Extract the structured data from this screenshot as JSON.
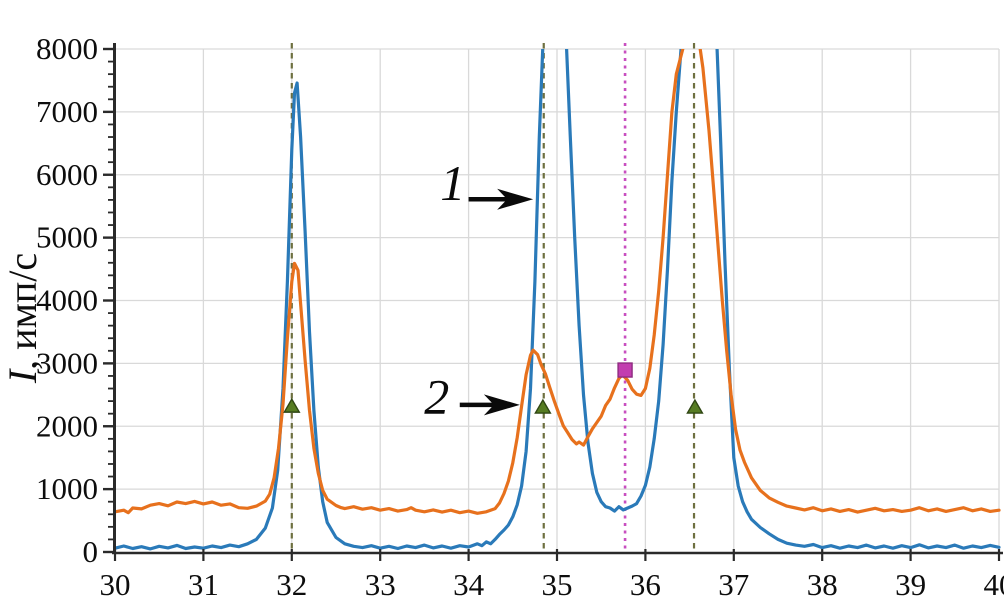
{
  "figure": {
    "background": "#ffffff"
  },
  "chart_data": {
    "type": "line",
    "title": "",
    "xlabel": "",
    "ylabel": "I, имп/с",
    "ylabel_italic_part": "I",
    "ylabel_rest": ", имп/с",
    "xlim": [
      30,
      40
    ],
    "ylim": [
      0,
      8000
    ],
    "x_ticks": [
      30,
      31,
      32,
      33,
      34,
      35,
      36,
      37,
      38,
      39,
      40
    ],
    "y_ticks": [
      0,
      1000,
      2000,
      3000,
      4000,
      5000,
      6000,
      7000,
      8000
    ],
    "y_minor_step": 200,
    "grid": true,
    "grid_color": "#d9d9d9",
    "axis_color": "#2a2a2a",
    "tick_label_color": "#0d0d0d",
    "legend_position": "none",
    "series": [
      {
        "name": "1",
        "color": "#2a7ab9",
        "points": [
          [
            30,
            60
          ],
          [
            30.1,
            95
          ],
          [
            30.2,
            55
          ],
          [
            30.3,
            85
          ],
          [
            30.4,
            50
          ],
          [
            30.5,
            90
          ],
          [
            30.6,
            65
          ],
          [
            30.7,
            105
          ],
          [
            30.8,
            55
          ],
          [
            30.9,
            80
          ],
          [
            31,
            60
          ],
          [
            31.1,
            95
          ],
          [
            31.2,
            70
          ],
          [
            31.3,
            110
          ],
          [
            31.4,
            85
          ],
          [
            31.5,
            130
          ],
          [
            31.6,
            200
          ],
          [
            31.7,
            380
          ],
          [
            31.78,
            700
          ],
          [
            31.84,
            1300
          ],
          [
            31.9,
            2600
          ],
          [
            31.95,
            4300
          ],
          [
            32,
            6400
          ],
          [
            32.03,
            7300
          ],
          [
            32.06,
            7460
          ],
          [
            32.1,
            6600
          ],
          [
            32.15,
            5100
          ],
          [
            32.2,
            3500
          ],
          [
            32.25,
            2250
          ],
          [
            32.3,
            1350
          ],
          [
            32.35,
            800
          ],
          [
            32.4,
            470
          ],
          [
            32.5,
            230
          ],
          [
            32.6,
            130
          ],
          [
            32.7,
            90
          ],
          [
            32.8,
            70
          ],
          [
            32.9,
            100
          ],
          [
            33,
            60
          ],
          [
            33.1,
            90
          ],
          [
            33.2,
            55
          ],
          [
            33.3,
            95
          ],
          [
            33.4,
            70
          ],
          [
            33.5,
            110
          ],
          [
            33.6,
            65
          ],
          [
            33.7,
            95
          ],
          [
            33.8,
            60
          ],
          [
            33.9,
            100
          ],
          [
            34,
            80
          ],
          [
            34.1,
            130
          ],
          [
            34.15,
            100
          ],
          [
            34.2,
            160
          ],
          [
            34.25,
            130
          ],
          [
            34.3,
            200
          ],
          [
            34.35,
            280
          ],
          [
            34.4,
            350
          ],
          [
            34.45,
            430
          ],
          [
            34.5,
            560
          ],
          [
            34.55,
            750
          ],
          [
            34.6,
            1050
          ],
          [
            34.65,
            1600
          ],
          [
            34.7,
            2600
          ],
          [
            34.75,
            4300
          ],
          [
            34.8,
            6600
          ],
          [
            34.85,
            8400
          ],
          [
            34.95,
            9600
          ],
          [
            35.05,
            9200
          ],
          [
            35.1,
            8300
          ],
          [
            35.15,
            6600
          ],
          [
            35.2,
            5000
          ],
          [
            35.25,
            3600
          ],
          [
            35.3,
            2500
          ],
          [
            35.35,
            1750
          ],
          [
            35.4,
            1250
          ],
          [
            35.45,
            950
          ],
          [
            35.5,
            800
          ],
          [
            35.55,
            720
          ],
          [
            35.6,
            700
          ],
          [
            35.65,
            650
          ],
          [
            35.7,
            720
          ],
          [
            35.75,
            670
          ],
          [
            35.8,
            700
          ],
          [
            35.85,
            730
          ],
          [
            35.9,
            770
          ],
          [
            35.95,
            890
          ],
          [
            36,
            1060
          ],
          [
            36.05,
            1350
          ],
          [
            36.1,
            1800
          ],
          [
            36.15,
            2400
          ],
          [
            36.2,
            3300
          ],
          [
            36.25,
            4500
          ],
          [
            36.3,
            5900
          ],
          [
            36.35,
            7000
          ],
          [
            36.43,
            8500
          ],
          [
            36.55,
            9800
          ],
          [
            36.7,
            9700
          ],
          [
            36.8,
            8400
          ],
          [
            36.85,
            6600
          ],
          [
            36.9,
            4600
          ],
          [
            36.95,
            2900
          ],
          [
            37,
            1500
          ],
          [
            37.05,
            1050
          ],
          [
            37.1,
            800
          ],
          [
            37.15,
            640
          ],
          [
            37.2,
            520
          ],
          [
            37.3,
            390
          ],
          [
            37.4,
            290
          ],
          [
            37.5,
            200
          ],
          [
            37.6,
            140
          ],
          [
            37.7,
            110
          ],
          [
            37.8,
            90
          ],
          [
            37.9,
            120
          ],
          [
            38,
            70
          ],
          [
            38.1,
            100
          ],
          [
            38.2,
            60
          ],
          [
            38.3,
            95
          ],
          [
            38.4,
            70
          ],
          [
            38.5,
            110
          ],
          [
            38.6,
            65
          ],
          [
            38.7,
            95
          ],
          [
            38.8,
            60
          ],
          [
            38.9,
            100
          ],
          [
            39,
            70
          ],
          [
            39.1,
            115
          ],
          [
            39.2,
            65
          ],
          [
            39.3,
            95
          ],
          [
            39.4,
            70
          ],
          [
            39.5,
            110
          ],
          [
            39.6,
            60
          ],
          [
            39.7,
            95
          ],
          [
            39.8,
            70
          ],
          [
            39.9,
            105
          ],
          [
            40,
            75
          ]
        ]
      },
      {
        "name": "2",
        "color": "#e7711d",
        "points": [
          [
            30,
            640
          ],
          [
            30.1,
            665
          ],
          [
            30.15,
            625
          ],
          [
            30.2,
            700
          ],
          [
            30.3,
            685
          ],
          [
            30.4,
            745
          ],
          [
            30.5,
            770
          ],
          [
            30.6,
            735
          ],
          [
            30.7,
            795
          ],
          [
            30.8,
            770
          ],
          [
            30.9,
            805
          ],
          [
            31,
            765
          ],
          [
            31.1,
            795
          ],
          [
            31.2,
            745
          ],
          [
            31.3,
            765
          ],
          [
            31.4,
            705
          ],
          [
            31.5,
            695
          ],
          [
            31.6,
            730
          ],
          [
            31.7,
            810
          ],
          [
            31.75,
            920
          ],
          [
            31.8,
            1180
          ],
          [
            31.85,
            1650
          ],
          [
            31.9,
            2350
          ],
          [
            31.95,
            3400
          ],
          [
            32,
            4300
          ],
          [
            32.03,
            4590
          ],
          [
            32.07,
            4480
          ],
          [
            32.1,
            3950
          ],
          [
            32.15,
            3050
          ],
          [
            32.2,
            2250
          ],
          [
            32.25,
            1650
          ],
          [
            32.3,
            1250
          ],
          [
            32.35,
            980
          ],
          [
            32.4,
            840
          ],
          [
            32.5,
            740
          ],
          [
            32.55,
            710
          ],
          [
            32.6,
            690
          ],
          [
            32.7,
            720
          ],
          [
            32.8,
            680
          ],
          [
            32.9,
            705
          ],
          [
            33,
            665
          ],
          [
            33.1,
            690
          ],
          [
            33.2,
            650
          ],
          [
            33.3,
            675
          ],
          [
            33.35,
            705
          ],
          [
            33.4,
            665
          ],
          [
            33.5,
            640
          ],
          [
            33.6,
            670
          ],
          [
            33.7,
            635
          ],
          [
            33.8,
            665
          ],
          [
            33.9,
            625
          ],
          [
            34,
            650
          ],
          [
            34.1,
            615
          ],
          [
            34.2,
            640
          ],
          [
            34.3,
            690
          ],
          [
            34.35,
            780
          ],
          [
            34.4,
            930
          ],
          [
            34.45,
            1130
          ],
          [
            34.5,
            1420
          ],
          [
            34.55,
            1820
          ],
          [
            34.6,
            2320
          ],
          [
            34.65,
            2820
          ],
          [
            34.7,
            3130
          ],
          [
            34.73,
            3210
          ],
          [
            34.78,
            3140
          ],
          [
            34.82,
            2980
          ],
          [
            34.87,
            2830
          ],
          [
            34.92,
            2610
          ],
          [
            34.97,
            2400
          ],
          [
            35.02,
            2200
          ],
          [
            35.07,
            2010
          ],
          [
            35.12,
            1900
          ],
          [
            35.17,
            1790
          ],
          [
            35.22,
            1720
          ],
          [
            35.25,
            1750
          ],
          [
            35.3,
            1700
          ],
          [
            35.35,
            1830
          ],
          [
            35.4,
            1960
          ],
          [
            35.45,
            2060
          ],
          [
            35.5,
            2160
          ],
          [
            35.55,
            2330
          ],
          [
            35.6,
            2430
          ],
          [
            35.65,
            2610
          ],
          [
            35.7,
            2760
          ],
          [
            35.74,
            2820
          ],
          [
            35.8,
            2730
          ],
          [
            35.85,
            2590
          ],
          [
            35.9,
            2510
          ],
          [
            35.95,
            2490
          ],
          [
            36,
            2600
          ],
          [
            36.05,
            2920
          ],
          [
            36.1,
            3450
          ],
          [
            36.15,
            4150
          ],
          [
            36.2,
            5000
          ],
          [
            36.25,
            6000
          ],
          [
            36.3,
            7000
          ],
          [
            36.35,
            7600
          ],
          [
            36.45,
            8150
          ],
          [
            36.55,
            8400
          ],
          [
            36.6,
            8200
          ],
          [
            36.65,
            7700
          ],
          [
            36.72,
            6700
          ],
          [
            36.77,
            5800
          ],
          [
            36.82,
            4900
          ],
          [
            36.87,
            4000
          ],
          [
            36.92,
            3200
          ],
          [
            36.97,
            2500
          ],
          [
            37.02,
            1950
          ],
          [
            37.07,
            1620
          ],
          [
            37.12,
            1430
          ],
          [
            37.2,
            1180
          ],
          [
            37.3,
            980
          ],
          [
            37.4,
            860
          ],
          [
            37.5,
            790
          ],
          [
            37.6,
            730
          ],
          [
            37.7,
            700
          ],
          [
            37.8,
            670
          ],
          [
            37.9,
            705
          ],
          [
            38,
            655
          ],
          [
            38.1,
            685
          ],
          [
            38.2,
            645
          ],
          [
            38.3,
            675
          ],
          [
            38.4,
            635
          ],
          [
            38.5,
            665
          ],
          [
            38.6,
            695
          ],
          [
            38.7,
            655
          ],
          [
            38.8,
            675
          ],
          [
            38.9,
            645
          ],
          [
            39,
            665
          ],
          [
            39.1,
            705
          ],
          [
            39.2,
            655
          ],
          [
            39.3,
            685
          ],
          [
            39.4,
            645
          ],
          [
            39.5,
            675
          ],
          [
            39.6,
            705
          ],
          [
            39.7,
            655
          ],
          [
            39.8,
            685
          ],
          [
            39.9,
            645
          ],
          [
            40,
            665
          ]
        ]
      }
    ],
    "reference_lines": [
      {
        "x": 32.0,
        "style": "dashed",
        "color": "#6e7040"
      },
      {
        "x": 34.85,
        "style": "dashed",
        "color": "#6e7040"
      },
      {
        "x": 36.55,
        "style": "dashed",
        "color": "#6e7040"
      },
      {
        "x": 35.77,
        "style": "dotted",
        "color": "#c84fc0"
      }
    ],
    "markers": [
      {
        "shape": "triangle",
        "x": 32.0,
        "y": 2320,
        "fill": "#567c22",
        "stroke": "#2f4613"
      },
      {
        "shape": "triangle",
        "x": 34.84,
        "y": 2305,
        "fill": "#567c22",
        "stroke": "#2f4613"
      },
      {
        "shape": "triangle",
        "x": 36.56,
        "y": 2305,
        "fill": "#567c22",
        "stroke": "#2f4613"
      },
      {
        "shape": "square",
        "x": 35.77,
        "y": 2894,
        "fill": "#c23daf",
        "stroke": "#8e2c80"
      }
    ],
    "annotations": [
      {
        "label": "1",
        "label_x": 33.82,
        "label_y": 5850,
        "arrow_from_x": 34.0,
        "arrow_from_y": 5610,
        "arrow_to_x": 34.73,
        "arrow_to_y": 5610
      },
      {
        "label": "2",
        "label_x": 33.64,
        "label_y": 2460,
        "arrow_from_x": 33.9,
        "arrow_from_y": 2340,
        "arrow_to_x": 34.58,
        "arrow_to_y": 2340
      }
    ]
  }
}
